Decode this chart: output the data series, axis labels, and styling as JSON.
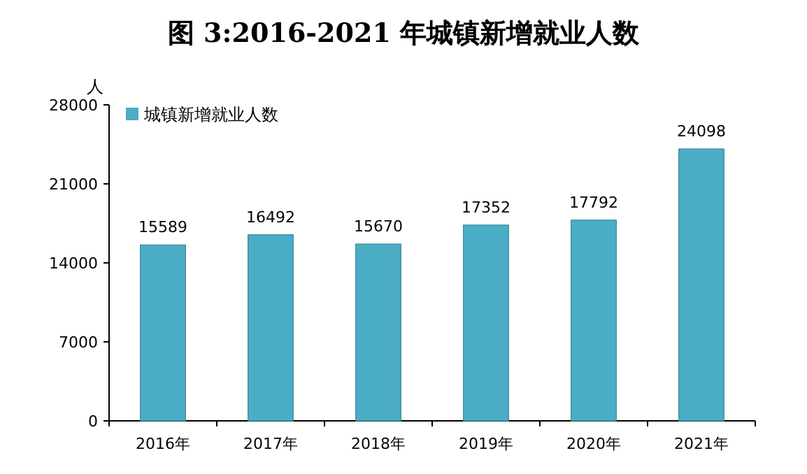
{
  "chart_data": {
    "type": "bar",
    "title": "图 3:2016-2021 年城镇新增就业人数",
    "ylabel": "人",
    "categories": [
      "2016年",
      "2017年",
      "2018年",
      "2019年",
      "2020年",
      "2021年"
    ],
    "series": [
      {
        "name": "城镇新增就业人数",
        "color": "#4bacc6",
        "values": [
          15589,
          16492,
          15670,
          17352,
          17792,
          24098
        ]
      }
    ],
    "ylim": [
      0,
      28000
    ],
    "yticks": [
      0,
      7000,
      14000,
      21000,
      28000
    ],
    "data_labels": true,
    "legend": "top left"
  }
}
